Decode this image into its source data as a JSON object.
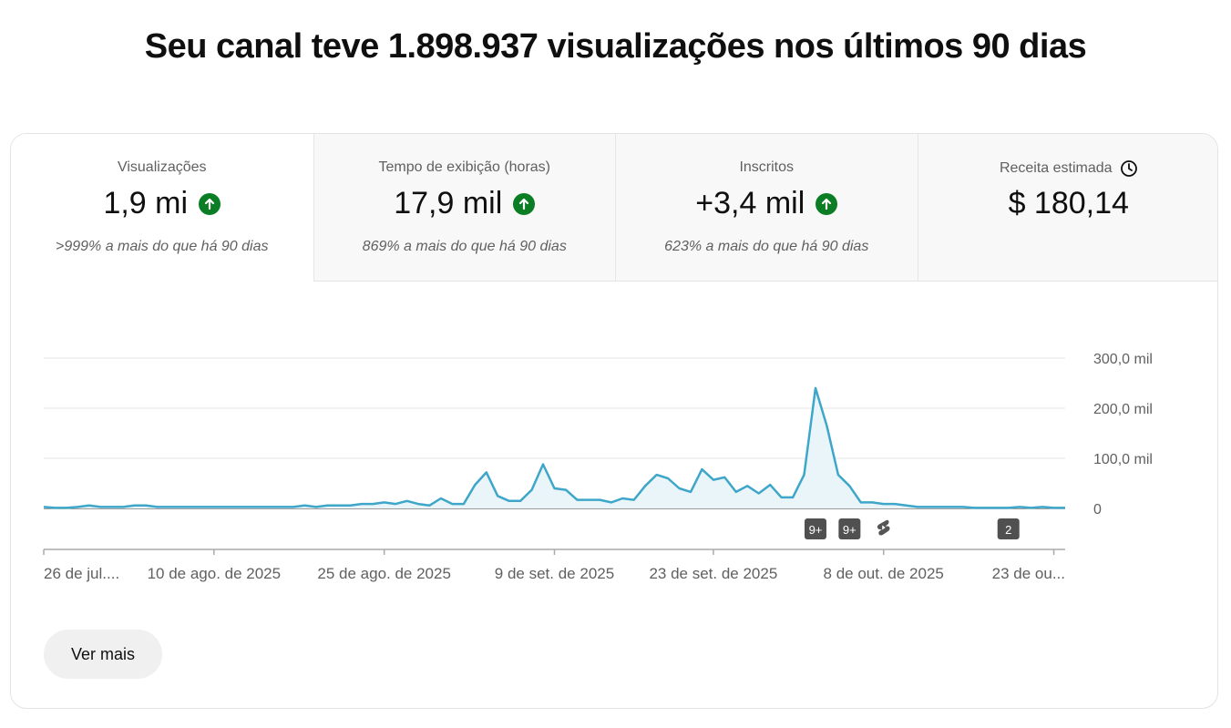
{
  "headline": "Seu canal teve 1.898.937 visualizações nos últimos 90 dias",
  "metrics": [
    {
      "label": "Visualizações",
      "value": "1,9 mi",
      "note": ">999% a mais do que há 90 dias"
    },
    {
      "label": "Tempo de exibição (horas)",
      "value": "17,9 mil",
      "note": "869% a mais do que há 90 dias"
    },
    {
      "label": "Inscritos",
      "value": "+3,4 mil",
      "note": "623% a mais do que há 90 dias"
    },
    {
      "label": "Receita estimada",
      "value": "$ 180,14",
      "note": ""
    }
  ],
  "colors": {
    "line": "#3ea6c9",
    "fill": "#eaf5f9",
    "up_arrow": "#0b7d25",
    "grid": "#e5e5e5"
  },
  "chart_data": {
    "type": "area",
    "ylim": [
      0,
      300000
    ],
    "y_ticks": [
      {
        "value": 0,
        "label": "0"
      },
      {
        "value": 100000,
        "label": "100,0 mil"
      },
      {
        "value": 200000,
        "label": "200,0 mil"
      },
      {
        "value": 300000,
        "label": "300,0 mil"
      }
    ],
    "x_labels": [
      {
        "day": 0,
        "label": "26 de jul...."
      },
      {
        "day": 15,
        "label": "10 de ago. de 2025"
      },
      {
        "day": 30,
        "label": "25 de ago. de 2025"
      },
      {
        "day": 45,
        "label": "9 de set. de 2025"
      },
      {
        "day": 59,
        "label": "23 de set. de 2025"
      },
      {
        "day": 74,
        "label": "8 de out. de 2025"
      },
      {
        "day": 89,
        "label": "23 de ou..."
      }
    ],
    "values": [
      3000,
      1000,
      1000,
      3000,
      6000,
      3000,
      3000,
      3000,
      6000,
      6000,
      3000,
      3000,
      3000,
      3000,
      3000,
      3000,
      3000,
      3000,
      3000,
      3000,
      3000,
      3000,
      3000,
      6000,
      3000,
      6000,
      6000,
      6000,
      9000,
      9000,
      12000,
      9000,
      15000,
      9000,
      6000,
      20000,
      9000,
      9000,
      47000,
      72000,
      25000,
      15000,
      15000,
      37000,
      88000,
      40000,
      37000,
      17000,
      17000,
      17000,
      12000,
      20000,
      17000,
      45000,
      67000,
      60000,
      40000,
      33000,
      78000,
      57000,
      62000,
      33000,
      45000,
      30000,
      47000,
      22000,
      22000,
      67000,
      240000,
      165000,
      67000,
      45000,
      12000,
      12000,
      9000,
      9000,
      6000,
      3000,
      3000,
      3000,
      3000,
      3000,
      1000,
      1000,
      1000,
      1000,
      3000,
      1000,
      3000,
      1000,
      1000
    ],
    "markers": [
      {
        "day": 68,
        "label": "9+"
      },
      {
        "day": 71,
        "label": "9+"
      },
      {
        "day": 74,
        "label": "shorts-icon"
      },
      {
        "day": 85,
        "label": "2"
      }
    ]
  },
  "see_more": "Ver mais"
}
